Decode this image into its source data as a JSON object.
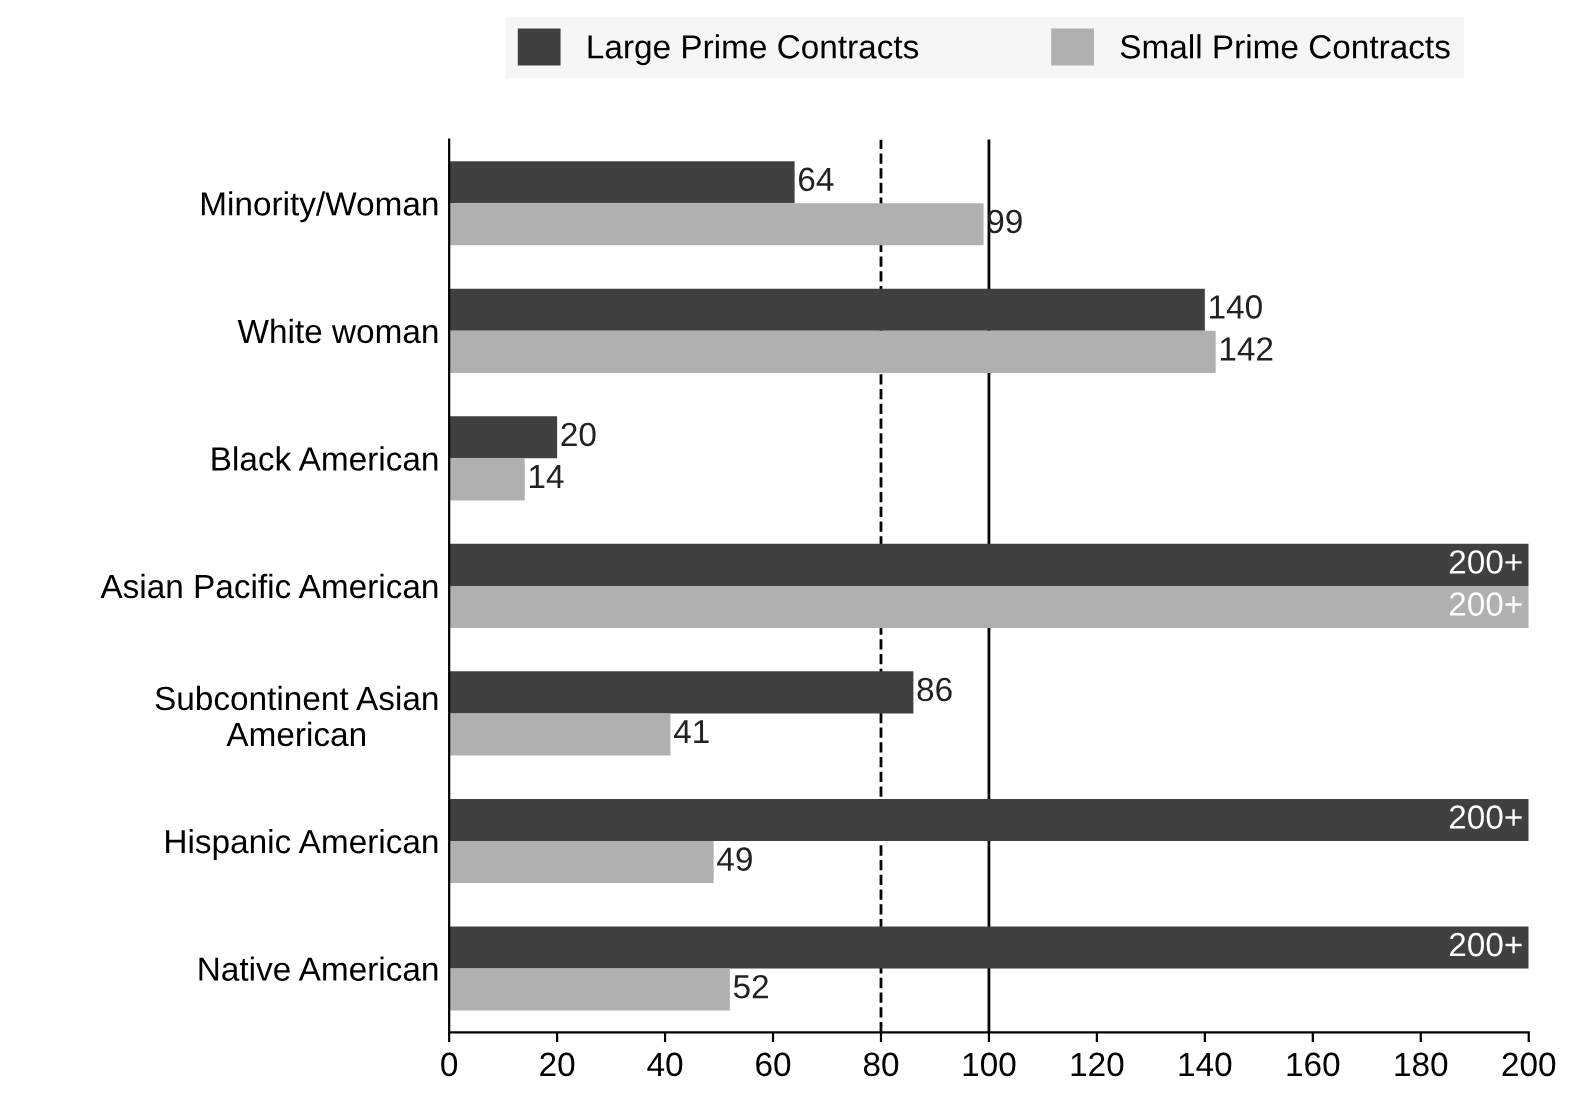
{
  "chart_data": {
    "type": "bar",
    "orientation": "horizontal",
    "categories": [
      "Minority/Woman",
      "White woman",
      "Black American",
      "Asian Pacific American",
      "Subcontinent Asian\nAmerican",
      "Hispanic American",
      "Native American"
    ],
    "series": [
      {
        "name": "Large Prime Contracts",
        "color": "#404040",
        "values": [
          64,
          140,
          20,
          200,
          86,
          200,
          200
        ],
        "value_labels": [
          "64",
          "140",
          "20",
          "200+",
          "86",
          "200+",
          "200+"
        ]
      },
      {
        "name": "Small Prime Contracts",
        "color": "#b0b0b0",
        "values": [
          99,
          142,
          14,
          200,
          41,
          49,
          52
        ],
        "value_labels": [
          "99",
          "142",
          "14",
          "200+",
          "41",
          "49",
          "52"
        ]
      }
    ],
    "xlim": [
      0,
      200
    ],
    "xticks": [
      0,
      20,
      40,
      60,
      80,
      100,
      120,
      140,
      160,
      180,
      200
    ],
    "ref_lines": [
      {
        "axis": "x",
        "value": 80,
        "line_style": "dashed",
        "color": "#000000"
      },
      {
        "axis": "x",
        "value": 100,
        "line_style": "solid",
        "color": "#000000"
      }
    ],
    "legend": "top",
    "grid": false
  }
}
